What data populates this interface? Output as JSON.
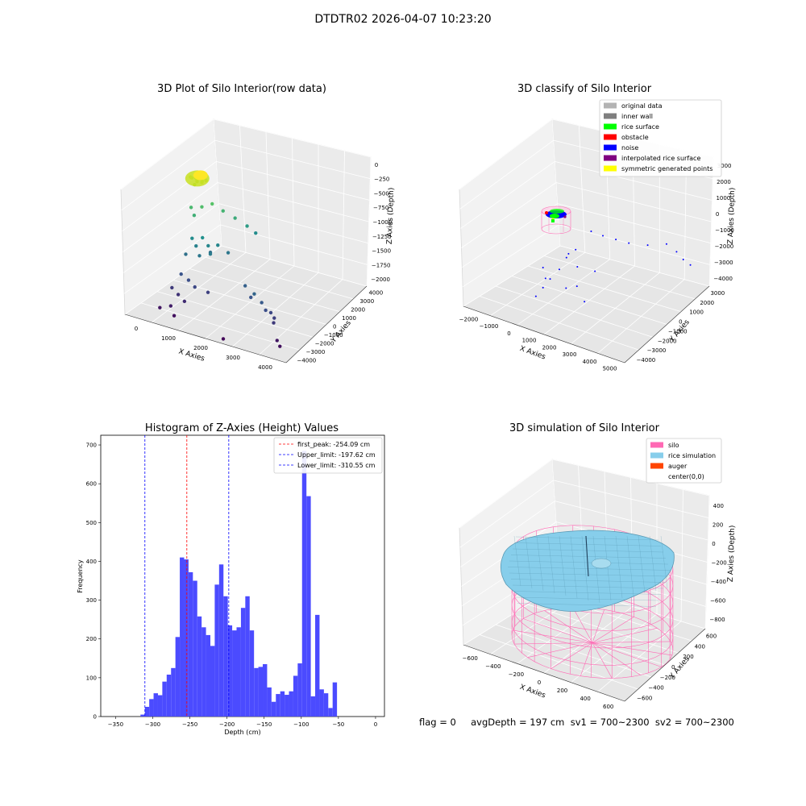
{
  "figure": {
    "supertitle": "DTDTR02 2026-04-07 10:23:20",
    "footer": "flag = 0     avgDepth = 197 cm  sv1 = 700~2300  sv2 = 700~2300"
  },
  "colors": {
    "original": "#b3b3b3",
    "inner_wall": "#7f7f7f",
    "rice": "#00ff00",
    "obstacle": "#ff0000",
    "noise": "#0000ff",
    "interpolated": "#800080",
    "symmetric": "#ffff00",
    "hist_bar": "#4b4bff",
    "first_peak_line": "#ff0000",
    "limit_line": "#0000ff",
    "silo": "#ff69b4",
    "rice_sim": "#87ceeb",
    "auger": "#ff4500"
  },
  "chart_data": [
    {
      "type": "scatter",
      "projection": "3d",
      "title": "3D Plot of Silo Interior(row data)",
      "xlabel": "X Axies",
      "ylabel": "Y Axies",
      "zlabel": "Z Axies (Depth)",
      "x_ticks": [
        "0",
        "1000",
        "2000",
        "3000",
        "4000"
      ],
      "y_ticks": [
        "−4000",
        "−3000",
        "−2000",
        "−1000",
        "0",
        "1000",
        "2000",
        "3000",
        "4000"
      ],
      "z_ticks": [
        "−2000",
        "−1750",
        "−1500",
        "−1250",
        "−1000",
        "−750",
        "−500",
        "−250",
        "0"
      ],
      "xlim": [
        -500,
        4200
      ],
      "ylim": [
        -4200,
        4200
      ],
      "zlim": [
        -2150,
        150
      ],
      "colormap": "viridis by depth",
      "grid": true,
      "points": [
        [
          0,
          0,
          -90
        ],
        [
          150,
          120,
          -70
        ],
        [
          220,
          -90,
          -80
        ],
        [
          320,
          60,
          -120
        ],
        [
          100,
          -180,
          -60
        ],
        [
          380,
          -140,
          -100
        ],
        [
          260,
          200,
          -110
        ],
        [
          180,
          40,
          -150
        ],
        [
          300,
          -40,
          -40
        ],
        [
          60,
          260,
          -130
        ],
        [
          420,
          100,
          -90
        ],
        [
          140,
          -60,
          -200
        ],
        [
          120,
          -300,
          -600
        ],
        [
          260,
          -450,
          -700
        ],
        [
          400,
          -200,
          -550
        ],
        [
          600,
          100,
          -500
        ],
        [
          800,
          450,
          -650
        ],
        [
          1100,
          600,
          -750
        ],
        [
          1350,
          900,
          -900
        ],
        [
          1500,
          1200,
          -1050
        ],
        [
          350,
          -900,
          -1050
        ],
        [
          500,
          -1000,
          -1150
        ],
        [
          620,
          -800,
          -1000
        ],
        [
          820,
          -900,
          -1100
        ],
        [
          950,
          -1100,
          -1200
        ],
        [
          700,
          -1300,
          -1250
        ],
        [
          300,
          -1300,
          -1300
        ],
        [
          1000,
          -600,
          -1100
        ],
        [
          1200,
          -300,
          -1250
        ],
        [
          750,
          -500,
          -1300
        ],
        [
          2700,
          -2500,
          -1400
        ],
        [
          2950,
          -2600,
          -1500
        ],
        [
          3100,
          -2700,
          -1600
        ],
        [
          3350,
          -2700,
          -1700
        ],
        [
          3400,
          -2900,
          -1750
        ],
        [
          2500,
          -2200,
          -1550
        ],
        [
          2200,
          -1800,
          -1450
        ],
        [
          3200,
          -2550,
          -1650
        ],
        [
          400,
          -2000,
          -1550
        ],
        [
          650,
          -2100,
          -1600
        ],
        [
          900,
          -2300,
          -1650
        ],
        [
          1250,
          -2200,
          -1700
        ],
        [
          300,
          -2500,
          -1750
        ],
        [
          550,
          -2700,
          -1800
        ],
        [
          800,
          -2900,
          -1850
        ],
        [
          500,
          -3200,
          -1950
        ],
        [
          250,
          -3400,
          -2000
        ],
        [
          700,
          -3500,
          -2050
        ],
        [
          3600,
          -3200,
          -2000
        ],
        [
          3750,
          -3400,
          -2050
        ],
        [
          2300,
          -4000,
          -2100
        ]
      ]
    },
    {
      "type": "scatter",
      "projection": "3d",
      "title": "3D classify of Silo Interior",
      "xlabel": "X Axies",
      "ylabel": "Y Axies",
      "zlabel": "Z Axies (Depth)",
      "x_ticks": [
        "−2000",
        "−1000",
        "0",
        "1000",
        "2000",
        "3000",
        "4000",
        "5000"
      ],
      "y_ticks": [
        "−4000",
        "−3000",
        "−2000",
        "−1000",
        "0",
        "1000",
        "2000",
        "3000"
      ],
      "z_ticks": [
        "−4000",
        "−3000",
        "−2000",
        "−1000",
        "0",
        "1000",
        "2000",
        "3000"
      ],
      "xlim": [
        -2200,
        5500
      ],
      "ylim": [
        -4200,
        3500
      ],
      "zlim": [
        -4500,
        3200
      ],
      "legend": [
        "original data",
        "inner wall",
        "rice surface",
        "obstacle",
        "noise",
        "interpolated rice surface",
        "symmetric generated points"
      ],
      "legend_position": "upper right",
      "grid": true,
      "noise_points": [
        [
          1500,
          -200,
          0
        ],
        [
          2000,
          -100,
          -100
        ],
        [
          2500,
          100,
          -200
        ],
        [
          3000,
          300,
          -300
        ],
        [
          3600,
          800,
          -400
        ],
        [
          4200,
          1300,
          -300
        ],
        [
          4500,
          1600,
          -800
        ],
        [
          4700,
          1800,
          -1300
        ],
        [
          4800,
          2200,
          -1800
        ],
        [
          1000,
          -600,
          -1200
        ],
        [
          800,
          -1000,
          -1600
        ],
        [
          700,
          -1400,
          -2200
        ],
        [
          500,
          -1800,
          -2700
        ],
        [
          400,
          -2200,
          -3100
        ],
        [
          300,
          -2600,
          -3500
        ],
        [
          900,
          -1200,
          -3400
        ],
        [
          1600,
          -1500,
          -2800
        ],
        [
          2200,
          -1900,
          -3300
        ],
        [
          1200,
          -800,
          -2100
        ],
        [
          600,
          -500,
          -1700
        ],
        [
          -200,
          -1200,
          -2600
        ],
        [
          100,
          -1500,
          -3000
        ],
        [
          1800,
          -400,
          -2300
        ]
      ]
    },
    {
      "type": "bar",
      "title": "Histogram of Z-Axies (Height) Values",
      "xlabel": "Depth (cm)",
      "ylabel": "Frequency",
      "xlim": [
        -370,
        12
      ],
      "ylim": [
        0,
        725
      ],
      "x_ticks": [
        -350,
        -300,
        -250,
        -200,
        -150,
        -100,
        -50,
        0
      ],
      "y_ticks": [
        0,
        100,
        200,
        300,
        400,
        500,
        600,
        700
      ],
      "bin_width": 5.88,
      "bin_start": -316.5,
      "values": [
        5,
        25,
        45,
        60,
        55,
        90,
        108,
        125,
        205,
        410,
        405,
        372,
        350,
        258,
        230,
        210,
        182,
        340,
        392,
        310,
        235,
        222,
        230,
        280,
        310,
        222,
        125,
        128,
        135,
        75,
        38,
        58,
        65,
        56,
        65,
        105,
        137,
        685,
        568,
        52,
        262,
        70,
        60,
        22,
        88
      ],
      "vlines": [
        {
          "label": "first_peak: -254.09 cm",
          "x": -254.09,
          "color": "#ff0000"
        },
        {
          "label": "Upper_limit: -197.62 cm",
          "x": -197.62,
          "color": "#0000ff"
        },
        {
          "label": "Lower_limit: -310.55 cm",
          "x": -310.55,
          "color": "#0000ff"
        }
      ],
      "legend_position": "upper right",
      "grid": false
    },
    {
      "type": "surface",
      "projection": "3d",
      "title": "3D simulation of Silo Interior",
      "xlabel": "X Axies",
      "ylabel": "Y Axies",
      "zlabel": "Z Axies (Depth)",
      "x_ticks": [
        "−600",
        "−400",
        "−200",
        "0",
        "200",
        "400",
        "600"
      ],
      "y_ticks": [
        "−600",
        "−400",
        "−200",
        "0",
        "200",
        "400",
        "600"
      ],
      "z_ticks": [
        "−800",
        "−600",
        "−400",
        "−200",
        "0",
        "200",
        "400"
      ],
      "xlim": [
        -700,
        700
      ],
      "ylim": [
        -700,
        700
      ],
      "zlim": [
        -950,
        450
      ],
      "silo_radius": 600,
      "silo_top": 0,
      "silo_bottom": -950,
      "rice_level": -197,
      "legend": [
        "silo",
        "rice simulation",
        "auger",
        "center(0,0)"
      ],
      "legend_position": "upper right",
      "grid": true
    }
  ]
}
